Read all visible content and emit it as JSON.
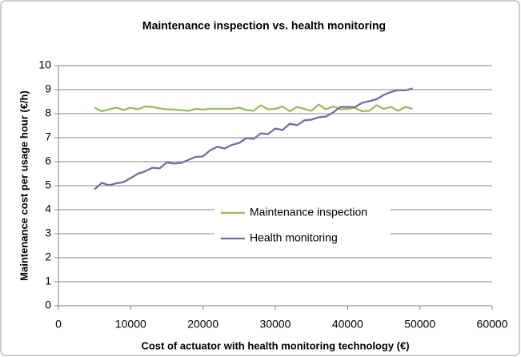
{
  "chart_data": {
    "type": "line",
    "title": "Maintenance inspection vs. health monitoring",
    "xlabel": "Cost of actuator with health monitoring technology (€)",
    "ylabel": "Maintenance cost per usage hour (€/h)",
    "x": [
      5000,
      6000,
      7000,
      8000,
      9000,
      10000,
      11000,
      12000,
      13000,
      14000,
      15000,
      16000,
      17000,
      18000,
      19000,
      20000,
      21000,
      22000,
      23000,
      24000,
      25000,
      26000,
      27000,
      28000,
      29000,
      30000,
      31000,
      32000,
      33000,
      34000,
      35000,
      36000,
      37000,
      38000,
      39000,
      40000,
      41000,
      42000,
      43000,
      44000,
      45000,
      46000,
      47000,
      48000,
      49000
    ],
    "series": [
      {
        "name": "Maintenance inspection",
        "color": "#9bbb59",
        "values": [
          8.25,
          8.1,
          8.18,
          8.25,
          8.15,
          8.25,
          8.18,
          8.3,
          8.28,
          8.22,
          8.18,
          8.17,
          8.15,
          8.12,
          8.2,
          8.17,
          8.2,
          8.2,
          8.2,
          8.2,
          8.25,
          8.15,
          8.12,
          8.35,
          8.18,
          8.2,
          8.3,
          8.1,
          8.28,
          8.2,
          8.12,
          8.38,
          8.18,
          8.3,
          8.18,
          8.2,
          8.25,
          8.1,
          8.12,
          8.35,
          8.2,
          8.28,
          8.12,
          8.28,
          8.2
        ]
      },
      {
        "name": "Health monitoring",
        "color": "#6e6ea8",
        "values": [
          4.85,
          5.12,
          5.02,
          5.1,
          5.15,
          5.32,
          5.5,
          5.6,
          5.75,
          5.72,
          5.97,
          5.92,
          5.95,
          6.08,
          6.2,
          6.22,
          6.48,
          6.62,
          6.55,
          6.7,
          6.78,
          6.98,
          6.95,
          7.18,
          7.15,
          7.38,
          7.32,
          7.58,
          7.52,
          7.72,
          7.75,
          7.85,
          7.88,
          8.05,
          8.28,
          8.28,
          8.27,
          8.45,
          8.52,
          8.6,
          8.78,
          8.9,
          8.98,
          8.97,
          9.05
        ]
      }
    ],
    "xlim": [
      0,
      60000
    ],
    "xticks": [
      0,
      10000,
      20000,
      30000,
      40000,
      50000,
      60000
    ],
    "ylim": [
      0,
      10
    ],
    "yticks": [
      0,
      1,
      2,
      3,
      4,
      5,
      6,
      7,
      8,
      9,
      10
    ],
    "grid": true,
    "legend": "center"
  }
}
